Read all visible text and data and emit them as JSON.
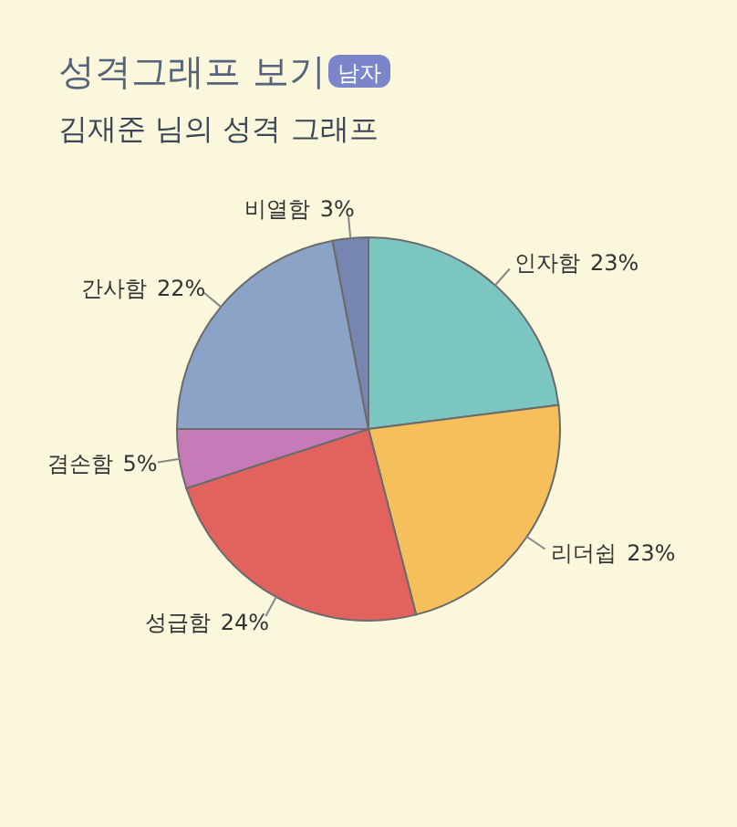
{
  "chart_data": {
    "type": "pie",
    "title": "성격그래프 보기",
    "subtitle": "김재준 님의 성격 그래프",
    "annotations": [
      "남자"
    ],
    "categories": [
      "인자함",
      "리더쉽",
      "성급함",
      "겸손함",
      "간사함",
      "비열함"
    ],
    "values": [
      23,
      23,
      24,
      5,
      22,
      3
    ],
    "colors": [
      "#7cc6c2",
      "#f5bf5c",
      "#e2625e",
      "#c57bb8",
      "#8aa3c6",
      "#7786b0"
    ],
    "value_labels": [
      "23%",
      "23%",
      "24%",
      "5%",
      "22%",
      "3%"
    ]
  }
}
